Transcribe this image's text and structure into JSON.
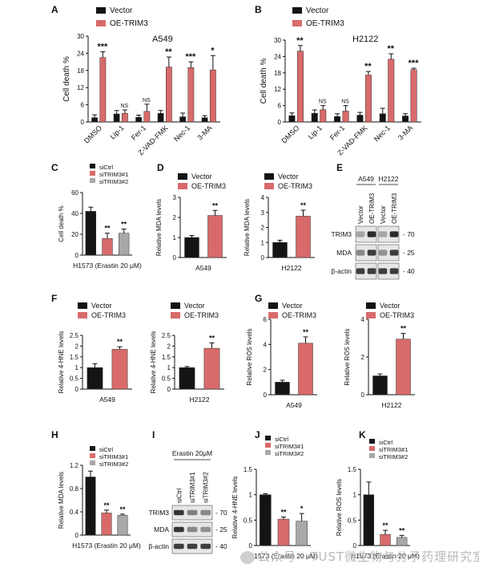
{
  "figure": {
    "watermark": "公众号 · TUST微生物与分子药理研究室",
    "colors": {
      "vector": "#141414",
      "oe": "#d86a6a",
      "sictrl": "#141414",
      "si1": "#d86a6a",
      "si2": "#a8a8a8",
      "blot_bg": "#e6e6e6",
      "band": "#2a2a2a"
    }
  },
  "chart_data": [
    {
      "id": "A",
      "panel_letter": "A",
      "type": "bar",
      "title": "A549",
      "categories": [
        "DMSO",
        "Lip-1",
        "Fer-1",
        "Z-VAD-FMK",
        "Nec-1",
        "3-MA"
      ],
      "series": [
        {
          "name": "Vector",
          "values": [
            1.5,
            2.8,
            1.6,
            3.0,
            1.8,
            1.5
          ],
          "errors": [
            1.0,
            1.2,
            0.8,
            1.0,
            1.3,
            0.7
          ]
        },
        {
          "name": "OE-TRIM3",
          "values": [
            22.5,
            3.0,
            3.7,
            19.2,
            19.0,
            18.2
          ],
          "errors": [
            2.0,
            1.2,
            2.5,
            3.5,
            2.0,
            5.0
          ]
        }
      ],
      "sig": [
        "***",
        "NS",
        "NS",
        "**",
        "***",
        "*"
      ],
      "ylabel": "Cell death %",
      "ylim": [
        0,
        30
      ],
      "yticks": [
        0,
        6,
        12,
        18,
        24,
        30
      ]
    },
    {
      "id": "B",
      "panel_letter": "B",
      "type": "bar",
      "title": "H2122",
      "categories": [
        "DMSO",
        "Lip-1",
        "Fer-1",
        "Z-VAD-FMK",
        "Nec-1",
        "3-MA"
      ],
      "series": [
        {
          "name": "Vector",
          "values": [
            2.3,
            3.2,
            2.0,
            2.5,
            3.0,
            2.2
          ],
          "errors": [
            1.0,
            1.2,
            1.0,
            1.0,
            2.0,
            0.8
          ]
        },
        {
          "name": "OE-TRIM3",
          "values": [
            26.0,
            4.5,
            4.0,
            17.2,
            23.0,
            19.2
          ],
          "errors": [
            2.0,
            1.5,
            2.0,
            1.3,
            2.0,
            0.5
          ]
        }
      ],
      "sig": [
        "**",
        "NS",
        "NS",
        "**",
        "**",
        "***"
      ],
      "ylabel": "Cell death %",
      "ylim": [
        0,
        30
      ],
      "yticks": [
        0,
        6,
        12,
        18,
        24,
        30
      ]
    },
    {
      "id": "C",
      "panel_letter": "C",
      "type": "bar",
      "categories": [
        "siCtrl",
        "siTRIM3#1",
        "siTRIM3#2"
      ],
      "values": [
        42,
        16,
        21
      ],
      "errors": [
        4,
        5,
        4
      ],
      "sig": [
        "",
        "**",
        "**"
      ],
      "ylabel": "Cell death %",
      "xlabel": "H1573 (Erastin 20 μM)",
      "ylim": [
        0,
        60
      ],
      "yticks": [
        0,
        20,
        40,
        60
      ],
      "legend": [
        "siCtrl",
        "siTRIM3#1",
        "siTRIM3#2"
      ]
    },
    {
      "id": "D1",
      "panel_letter": "D",
      "type": "bar",
      "categories": [
        "Vector",
        "OE-TRIM3"
      ],
      "values": [
        1.0,
        2.1
      ],
      "errors": [
        0.1,
        0.25
      ],
      "sig": [
        "",
        "**"
      ],
      "ylabel": "Relative MDA levels",
      "xlabel": "A549",
      "ylim": [
        0,
        3
      ],
      "yticks": [
        0,
        1,
        2,
        3
      ],
      "legend": [
        "Vector",
        "OE-TRIM3"
      ]
    },
    {
      "id": "D2",
      "panel_letter": "",
      "type": "bar",
      "categories": [
        "Vector",
        "OE-TRIM3"
      ],
      "values": [
        1.0,
        2.75
      ],
      "errors": [
        0.15,
        0.4
      ],
      "sig": [
        "",
        "**"
      ],
      "ylabel": "Relative MDA levels",
      "xlabel": "H2122",
      "ylim": [
        0,
        4
      ],
      "yticks": [
        0,
        1,
        2,
        3,
        4
      ],
      "legend": [
        "Vector",
        "OE-TRIM3"
      ]
    },
    {
      "id": "F1",
      "panel_letter": "F",
      "type": "bar",
      "categories": [
        "Vector",
        "OE-TRIM3"
      ],
      "values": [
        1.0,
        1.85
      ],
      "errors": [
        0.18,
        0.12
      ],
      "sig": [
        "",
        "**"
      ],
      "ylabel": "Relative 4-HNE levels",
      "xlabel": "A549",
      "ylim": [
        0,
        2.5
      ],
      "yticks": [
        0,
        0.5,
        1.0,
        1.5,
        2.0,
        2.5
      ],
      "legend": [
        "Vector",
        "OE-TRIM3"
      ]
    },
    {
      "id": "F2",
      "panel_letter": "",
      "type": "bar",
      "categories": [
        "Vector",
        "OE-TRIM3"
      ],
      "values": [
        1.0,
        1.9
      ],
      "errors": [
        0.05,
        0.25
      ],
      "sig": [
        "",
        "**"
      ],
      "ylabel": "Relative 4-HNE levels",
      "xlabel": "H2122",
      "ylim": [
        0,
        2.5
      ],
      "yticks": [
        0,
        0.5,
        1.0,
        1.5,
        2.0,
        2.5
      ],
      "legend": [
        "Vector",
        "OE-TRIM3"
      ]
    },
    {
      "id": "G1",
      "panel_letter": "G",
      "type": "bar",
      "categories": [
        "Vector",
        "OE-TRIM3"
      ],
      "values": [
        1.0,
        4.1
      ],
      "errors": [
        0.15,
        0.5
      ],
      "sig": [
        "",
        "**"
      ],
      "ylabel": "Relative ROS levels",
      "xlabel": "A549",
      "ylim": [
        0,
        6
      ],
      "yticks": [
        0,
        2,
        4,
        6
      ],
      "legend": [
        "Vector",
        "OE-TRIM3"
      ]
    },
    {
      "id": "G2",
      "panel_letter": "",
      "type": "bar",
      "categories": [
        "Vector",
        "OE-TRIM3"
      ],
      "values": [
        1.0,
        2.95
      ],
      "errors": [
        0.1,
        0.3
      ],
      "sig": [
        "",
        "**"
      ],
      "ylabel": "Relative ROS levels",
      "xlabel": "H2122",
      "ylim": [
        0,
        4
      ],
      "yticks": [
        0,
        2,
        4
      ],
      "legend": [
        "Vector",
        "OE-TRIM3"
      ]
    },
    {
      "id": "H",
      "panel_letter": "H",
      "type": "bar",
      "categories": [
        "siCtrl",
        "siTRIM3#1",
        "siTRIM3#2"
      ],
      "values": [
        1.0,
        0.38,
        0.34
      ],
      "errors": [
        0.1,
        0.05,
        0.02
      ],
      "sig": [
        "",
        "**",
        "**"
      ],
      "ylabel": "Relative MDA levels",
      "xlabel": "H1573 (Erastin 20 μM)",
      "ylim": [
        0,
        1.2
      ],
      "yticks": [
        0,
        0.4,
        0.8,
        1.2
      ],
      "legend": [
        "siCtrl",
        "siTRIM3#1",
        "siTRIM3#2"
      ]
    },
    {
      "id": "J",
      "panel_letter": "J",
      "type": "bar",
      "categories": [
        "siCtrl",
        "siTRIM3#1",
        "siTRIM3#2"
      ],
      "values": [
        1.0,
        0.52,
        0.48
      ],
      "errors": [
        0.02,
        0.04,
        0.15
      ],
      "sig": [
        "",
        "**",
        "*"
      ],
      "ylabel": "Relative 4-HNE levels",
      "xlabel": "H1573 (Erastin 20 μM)",
      "ylim": [
        0,
        1.5
      ],
      "yticks": [
        0,
        0.5,
        1.0,
        1.5
      ],
      "legend": [
        "siCtrl",
        "siTRIM3#1",
        "siTRIM3#2"
      ]
    },
    {
      "id": "K",
      "panel_letter": "K",
      "type": "bar",
      "categories": [
        "siCtrl",
        "siTRIM3#1",
        "siTRIM3#2"
      ],
      "values": [
        1.0,
        0.22,
        0.16
      ],
      "errors": [
        0.25,
        0.08,
        0.04
      ],
      "sig": [
        "",
        "**",
        "**"
      ],
      "ylabel": "Relative ROS levels",
      "xlabel": "H1573 (Erastin 20 μM)",
      "ylim": [
        0,
        1.5
      ],
      "yticks": [
        0,
        0.5,
        1.0,
        1.5
      ],
      "legend": [
        "siCtrl",
        "siTRIM3#1",
        "siTRIM3#2"
      ]
    }
  ],
  "blots": {
    "E": {
      "panel_letter": "E",
      "groups": [
        "A549",
        "H2122"
      ],
      "lanes": [
        "Vector",
        "OE-TRIM3",
        "Vector",
        "OE-TRIM3"
      ],
      "rows": [
        {
          "label": "TRIM3",
          "marker": "70",
          "intensity": [
            0.35,
            1.0,
            0.35,
            1.0
          ]
        },
        {
          "label": "MDA",
          "marker": "25",
          "intensity": [
            0.5,
            0.9,
            0.45,
            0.9
          ]
        },
        {
          "label": "β-actin",
          "marker": "40",
          "intensity": [
            0.9,
            0.9,
            0.9,
            0.9
          ]
        }
      ]
    },
    "I": {
      "panel_letter": "I",
      "header": "Erastin 20μM",
      "lanes": [
        "siCtrl",
        "siTRIM3#1",
        "siTRIM3#2"
      ],
      "rows": [
        {
          "label": "TRIM3",
          "marker": "70",
          "intensity": [
            0.95,
            0.55,
            0.5
          ]
        },
        {
          "label": "MDA",
          "marker": "25",
          "intensity": [
            0.95,
            0.5,
            0.45
          ]
        },
        {
          "label": "β-actin",
          "marker": "40",
          "intensity": [
            0.9,
            0.9,
            0.9
          ]
        }
      ]
    }
  }
}
